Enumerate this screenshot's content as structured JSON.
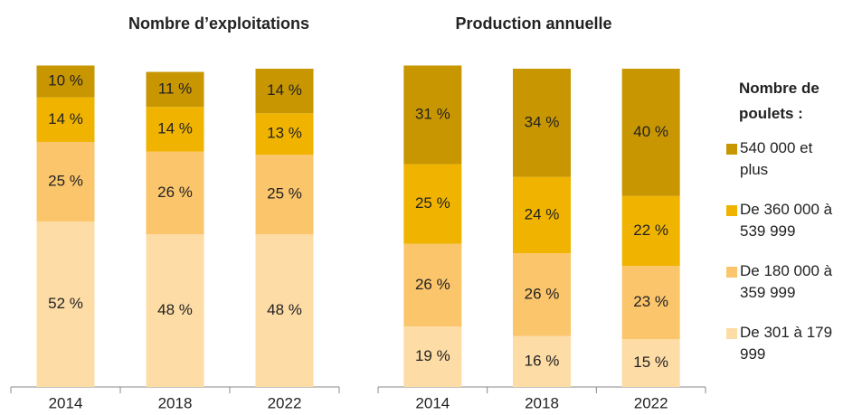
{
  "legend_title": "Nombre de poulets :",
  "chart_data": [
    {
      "type": "stacked_bar",
      "title": "Nombre d’exploitations",
      "categories": [
        "2014",
        "2018",
        "2022"
      ],
      "ylim": [
        0,
        100
      ],
      "series": [
        {
          "name": "De 301 à 179 999",
          "color": "#fddca6",
          "values": [
            52,
            48,
            48
          ],
          "value_labels": [
            "52 %",
            "48 %",
            "48 %"
          ]
        },
        {
          "name": "De 180 000 à 359 999",
          "color": "#fbc56b",
          "values": [
            25,
            26,
            25
          ],
          "value_labels": [
            "25 %",
            "26 %",
            "25 %"
          ]
        },
        {
          "name": "De 360 000 à 539 999",
          "color": "#f0b400",
          "values": [
            14,
            14,
            13
          ],
          "value_labels": [
            "14 %",
            "14 %",
            "13 %"
          ]
        },
        {
          "name": "540 000 et plus",
          "color": "#c89600",
          "values": [
            10,
            11,
            14
          ],
          "value_labels": [
            "10 %",
            "11 %",
            "14 %"
          ]
        }
      ]
    },
    {
      "type": "stacked_bar",
      "title": "Production annuelle",
      "categories": [
        "2014",
        "2018",
        "2022"
      ],
      "ylim": [
        0,
        100
      ],
      "series": [
        {
          "name": "De 301 à 179 999",
          "color": "#fddca6",
          "values": [
            19,
            16,
            15
          ],
          "value_labels": [
            "19 %",
            "16 %",
            "15 %"
          ]
        },
        {
          "name": "De 180 000 à 359 999",
          "color": "#fbc56b",
          "values": [
            26,
            26,
            23
          ],
          "value_labels": [
            "26 %",
            "26 %",
            "23 %"
          ]
        },
        {
          "name": "De 360 000 à 539 999",
          "color": "#f0b400",
          "values": [
            25,
            24,
            22
          ],
          "value_labels": [
            "25 %",
            "24 %",
            "22 %"
          ]
        },
        {
          "name": "540 000 et plus",
          "color": "#c89600",
          "values": [
            31,
            34,
            40
          ],
          "value_labels": [
            "31 %",
            "34 %",
            "40 %"
          ]
        }
      ]
    }
  ]
}
